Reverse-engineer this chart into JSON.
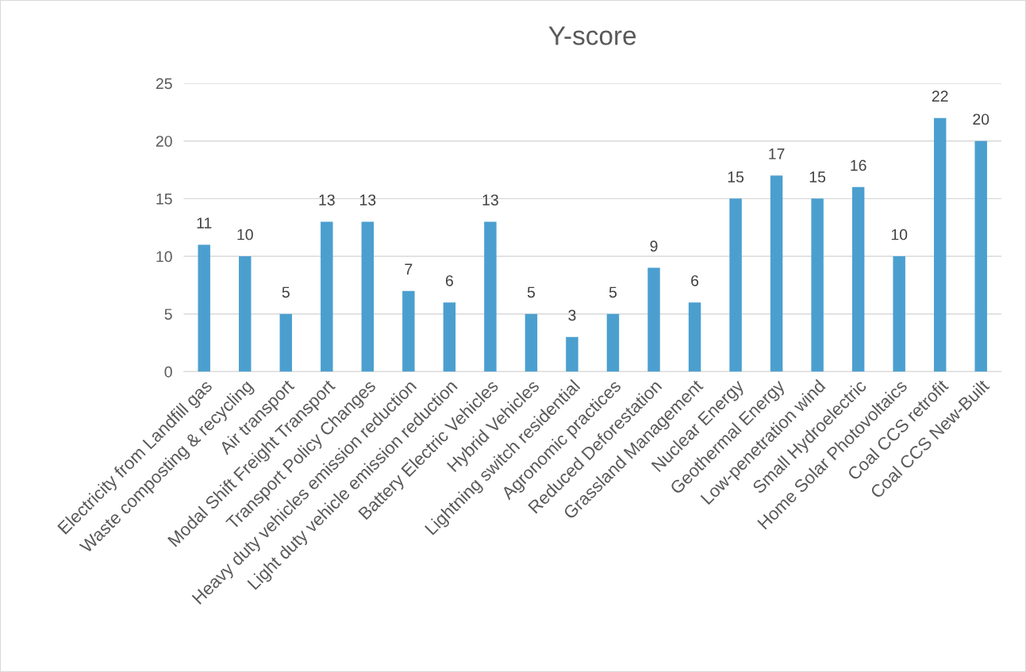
{
  "chart_data": {
    "type": "bar",
    "title": "Y-score",
    "categories": [
      "Electricity from Landfill gas",
      "Waste composting & recycling",
      "Air transport",
      "Modal Shift Freight Transport",
      "Transport Policy Changes",
      "Heavy duty vehicles emission reduction",
      "Light duty vehicle emission reduction",
      "Battery Electric Vehicles",
      "Hybrid Vehicles",
      "Lightning switch residential",
      "Agronomic practices",
      "Reduced Deforestation",
      "Grassland Management",
      "Nuclear Energy",
      "Geothermal Energy",
      "Low-penetration wind",
      "Small Hydroelectric",
      "Home Solar Photovoltaics",
      "Coal CCS retrofit",
      "Coal CCS New-Built"
    ],
    "values": [
      11,
      10,
      5,
      13,
      13,
      7,
      6,
      13,
      5,
      3,
      5,
      9,
      6,
      15,
      17,
      15,
      16,
      10,
      22,
      20
    ],
    "color": "#4b9fcf",
    "ylim": [
      0,
      25
    ],
    "yticks": [
      0,
      5,
      10,
      15,
      20,
      25
    ],
    "grid": "y",
    "data_labels": true
  }
}
